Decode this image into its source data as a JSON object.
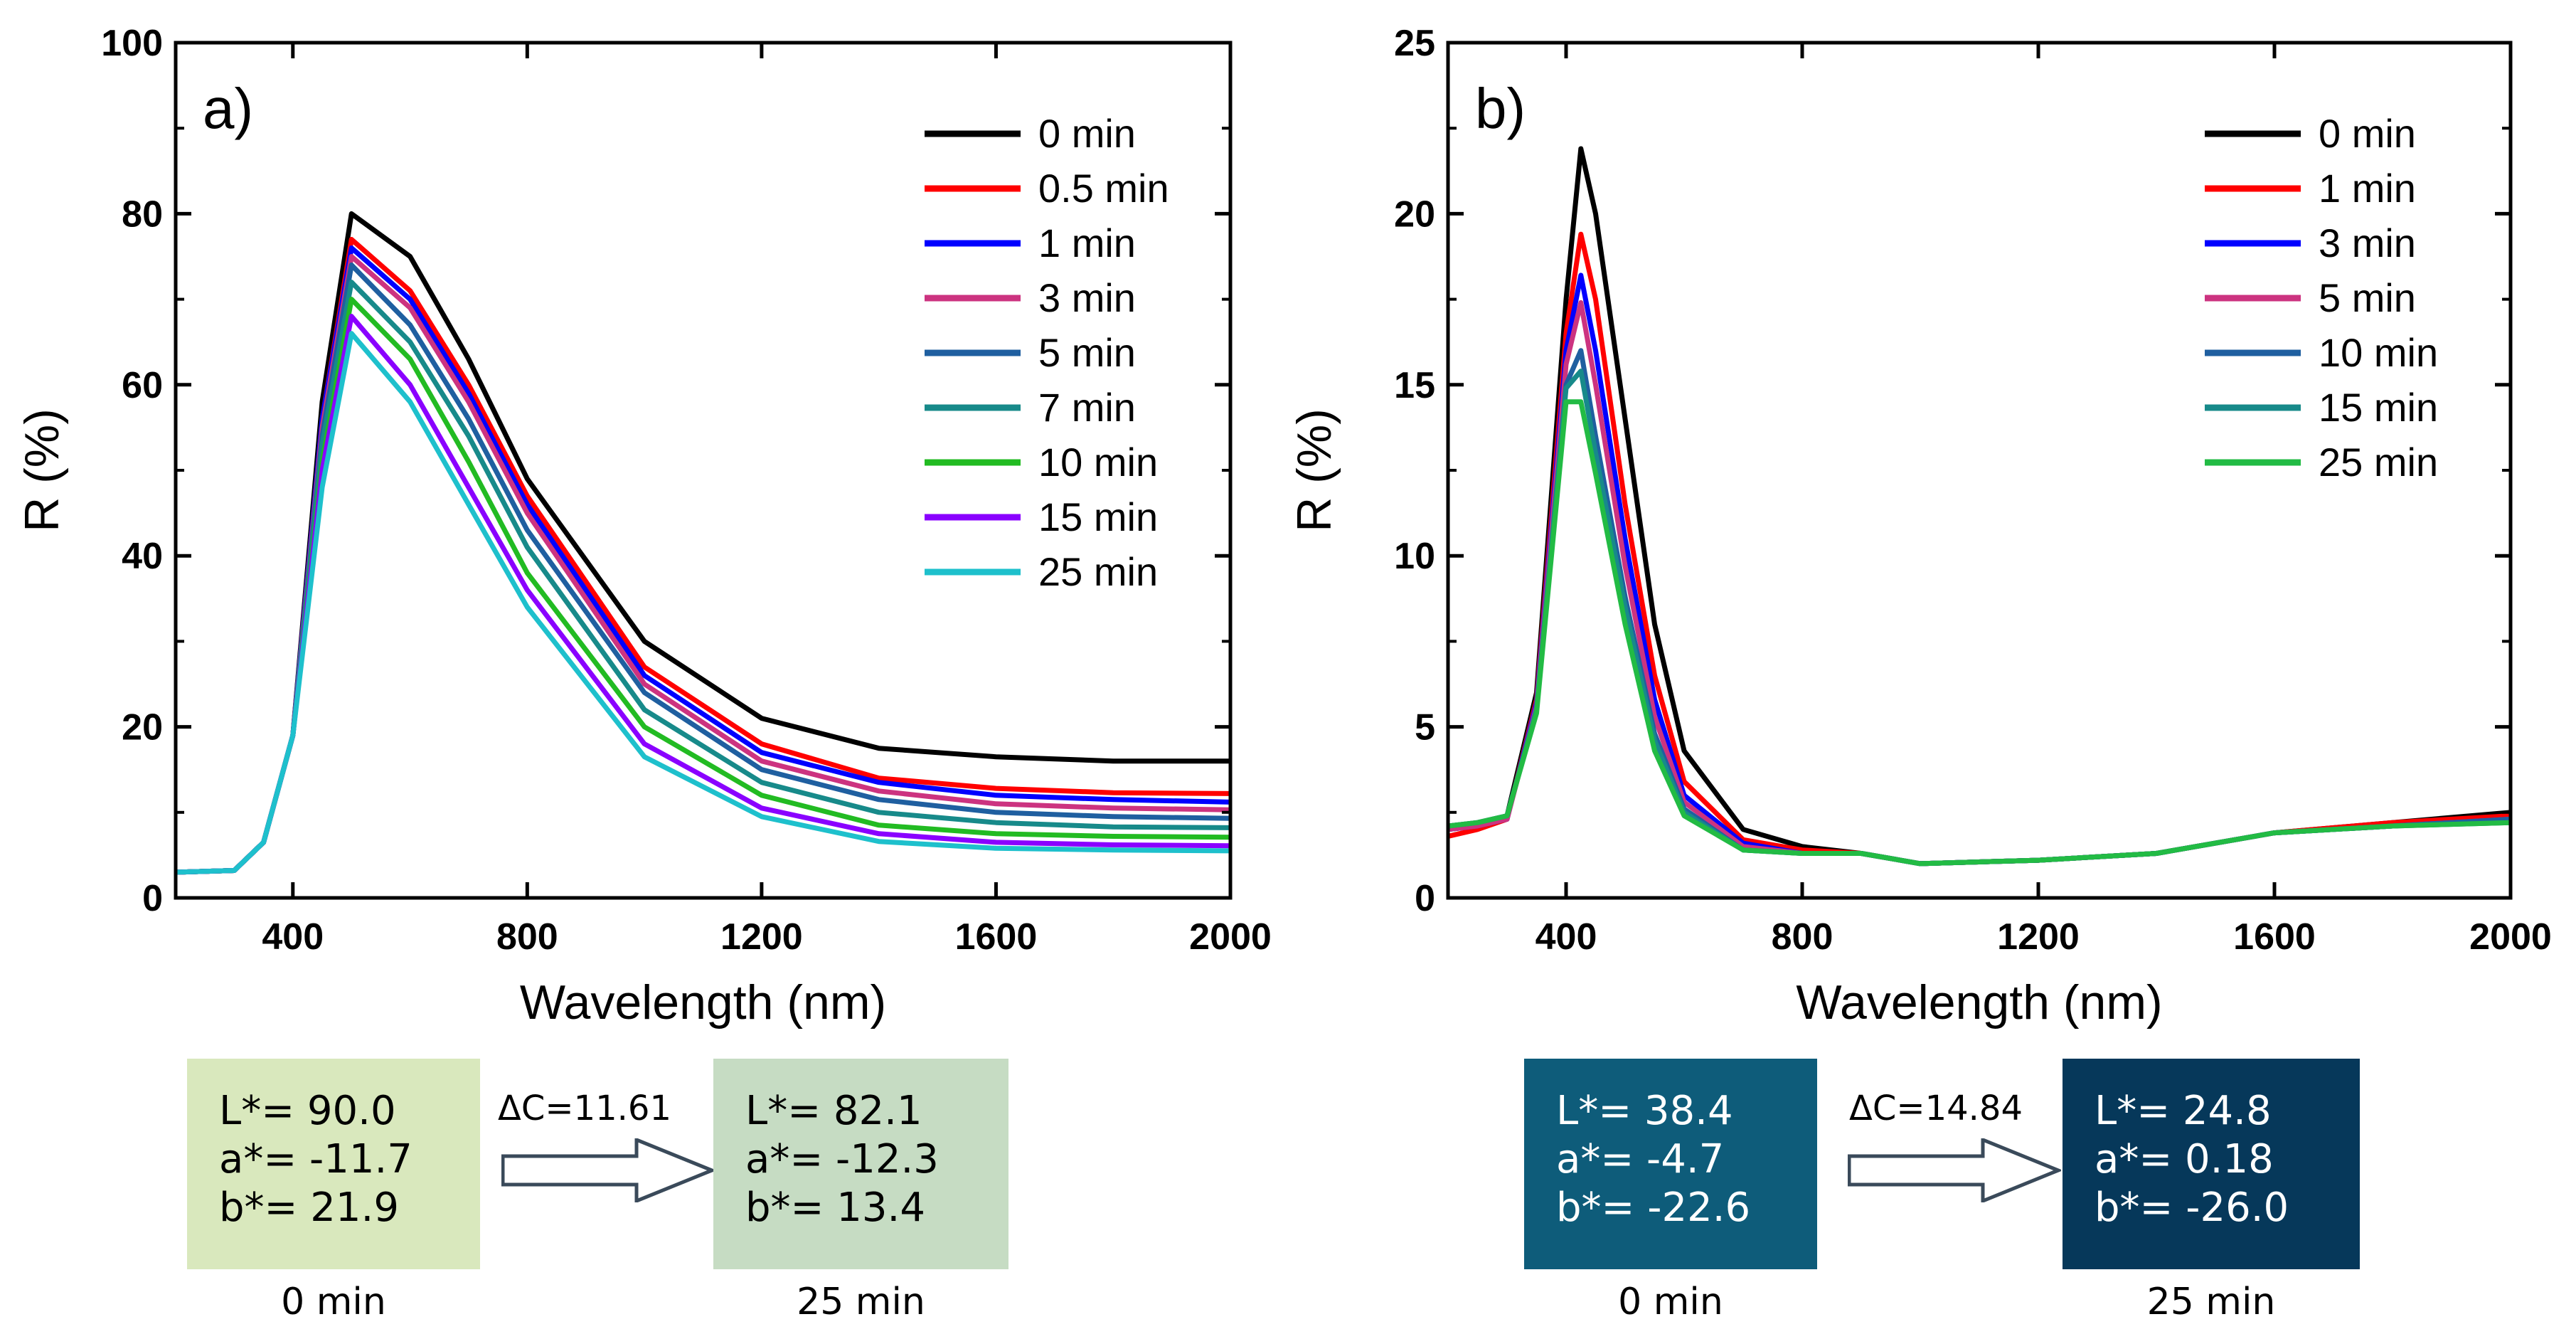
{
  "charts": [
    {
      "panel_label": "a)",
      "ylabel": "R (%)",
      "xlabel": "Wavelength (nm)",
      "legend": [
        {
          "name": "0 min",
          "color": "#000000"
        },
        {
          "name": "0.5 min",
          "color": "#ff0000"
        },
        {
          "name": "1 min",
          "color": "#0000ff"
        },
        {
          "name": "3 min",
          "color": "#cc3380"
        },
        {
          "name": "5 min",
          "color": "#1f5fa0"
        },
        {
          "name": "7 min",
          "color": "#178a8a"
        },
        {
          "name": "10 min",
          "color": "#22bb22"
        },
        {
          "name": "15 min",
          "color": "#8a00ff"
        },
        {
          "name": "25 min",
          "color": "#1ec0cc"
        }
      ],
      "xticks": [
        "400",
        "800",
        "1200",
        "1600",
        "2000"
      ],
      "yticks": [
        "0",
        "20",
        "40",
        "60",
        "80",
        "100"
      ]
    },
    {
      "panel_label": "b)",
      "ylabel": "R (%)",
      "xlabel": "Wavelength (nm)",
      "legend": [
        {
          "name": "0 min",
          "color": "#000000"
        },
        {
          "name": "1 min",
          "color": "#ff0000"
        },
        {
          "name": "3 min",
          "color": "#0000ff"
        },
        {
          "name": "5 min",
          "color": "#cc3380"
        },
        {
          "name": "10 min",
          "color": "#1f5fa0"
        },
        {
          "name": "15 min",
          "color": "#178a8a"
        },
        {
          "name": "25 min",
          "color": "#22bb44"
        }
      ],
      "xticks": [
        "400",
        "800",
        "1200",
        "1600",
        "2000"
      ],
      "yticks": [
        "0",
        "5",
        "10",
        "15",
        "20",
        "25"
      ]
    }
  ],
  "chart_data": [
    {
      "type": "line",
      "panel": "a)",
      "xlabel": "Wavelength (nm)",
      "ylabel": "R (%)",
      "xlim": [
        200,
        2000
      ],
      "ylim": [
        0,
        100
      ],
      "x": [
        200,
        300,
        350,
        400,
        450,
        500,
        600,
        700,
        800,
        1000,
        1200,
        1400,
        1600,
        1800,
        2000
      ],
      "series": [
        {
          "name": "0 min",
          "values": [
            3,
            3.2,
            6.5,
            19,
            58,
            80,
            75,
            63,
            49,
            30,
            21,
            17.5,
            16.5,
            16,
            16
          ]
        },
        {
          "name": "0.5 min",
          "values": [
            3,
            3.2,
            6.5,
            19,
            56,
            77,
            71,
            60,
            47,
            27,
            18,
            14,
            12.8,
            12.3,
            12.2
          ]
        },
        {
          "name": "1 min",
          "values": [
            3,
            3.2,
            6.5,
            19,
            56,
            76,
            70,
            59,
            46,
            26,
            17,
            13.5,
            12,
            11.5,
            11.2
          ]
        },
        {
          "name": "3 min",
          "values": [
            3,
            3.2,
            6.5,
            19,
            55,
            75,
            69,
            58,
            45,
            25,
            16,
            12.5,
            11,
            10.5,
            10.3
          ]
        },
        {
          "name": "5 min",
          "values": [
            3,
            3.2,
            6.5,
            19,
            54,
            74,
            67,
            56,
            43,
            24,
            15,
            11.5,
            10,
            9.5,
            9.3
          ]
        },
        {
          "name": "7 min",
          "values": [
            3,
            3.2,
            6.5,
            19,
            53,
            72,
            65,
            54,
            41,
            22,
            13.5,
            10,
            8.8,
            8.3,
            8.2
          ]
        },
        {
          "name": "10 min",
          "values": [
            3,
            3.2,
            6.5,
            19,
            51,
            70,
            63,
            51,
            38,
            20,
            12,
            8.5,
            7.5,
            7.2,
            7.1
          ]
        },
        {
          "name": "15 min",
          "values": [
            3,
            3.2,
            6.5,
            19,
            50,
            68,
            60,
            48,
            36,
            18,
            10.5,
            7.5,
            6.5,
            6.2,
            6.1
          ]
        },
        {
          "name": "25 min",
          "values": [
            3,
            3.2,
            6.5,
            19,
            48,
            66,
            58,
            46,
            34,
            16.5,
            9.5,
            6.6,
            5.8,
            5.6,
            5.5
          ]
        }
      ]
    },
    {
      "type": "line",
      "panel": "b)",
      "xlabel": "Wavelength (nm)",
      "ylabel": "R (%)",
      "xlim": [
        200,
        2000
      ],
      "ylim": [
        0,
        25
      ],
      "x": [
        200,
        250,
        300,
        350,
        400,
        425,
        450,
        500,
        550,
        600,
        700,
        800,
        900,
        1000,
        1200,
        1400,
        1600,
        1800,
        2000
      ],
      "series": [
        {
          "name": "0 min",
          "values": [
            2.0,
            2.1,
            2.4,
            6.0,
            17.5,
            21.9,
            20.0,
            14.0,
            8.0,
            4.3,
            2.0,
            1.5,
            1.3,
            1.0,
            1.1,
            1.3,
            1.9,
            2.2,
            2.5
          ]
        },
        {
          "name": "1 min",
          "values": [
            1.8,
            2.0,
            2.3,
            5.8,
            16.5,
            19.4,
            17.5,
            11.5,
            6.5,
            3.4,
            1.7,
            1.4,
            1.3,
            1.0,
            1.1,
            1.3,
            1.9,
            2.2,
            2.4
          ]
        },
        {
          "name": "3 min",
          "values": [
            2.0,
            2.1,
            2.3,
            5.7,
            16.0,
            18.2,
            16.0,
            10.5,
            5.8,
            3.0,
            1.6,
            1.3,
            1.3,
            1.0,
            1.1,
            1.3,
            1.9,
            2.1,
            2.3
          ]
        },
        {
          "name": "5 min",
          "values": [
            2.0,
            2.1,
            2.3,
            5.6,
            15.6,
            17.4,
            15.0,
            9.7,
            5.3,
            2.8,
            1.5,
            1.3,
            1.3,
            1.0,
            1.1,
            1.3,
            1.9,
            2.1,
            2.3
          ]
        },
        {
          "name": "10 min",
          "values": [
            2.1,
            2.2,
            2.4,
            5.5,
            15.0,
            16.0,
            13.5,
            8.8,
            4.8,
            2.6,
            1.4,
            1.3,
            1.3,
            1.0,
            1.1,
            1.3,
            1.9,
            2.1,
            2.3
          ]
        },
        {
          "name": "15 min",
          "values": [
            2.1,
            2.2,
            2.4,
            5.5,
            14.9,
            15.4,
            13.0,
            8.5,
            4.6,
            2.5,
            1.4,
            1.3,
            1.3,
            1.0,
            1.1,
            1.3,
            1.9,
            2.1,
            2.2
          ]
        },
        {
          "name": "25 min",
          "values": [
            2.1,
            2.2,
            2.4,
            5.4,
            14.5,
            14.5,
            12.4,
            8.0,
            4.3,
            2.4,
            1.4,
            1.3,
            1.3,
            1.0,
            1.1,
            1.3,
            1.9,
            2.1,
            2.2
          ]
        }
      ]
    }
  ],
  "color_panels": [
    {
      "left": {
        "lines": [
          "L*= 90.0",
          "a*= -11.7",
          "b*= 21.9"
        ],
        "caption": "0 min",
        "bg": "#d9e8bd",
        "fg": "#000000"
      },
      "delta": "ΔC=11.61",
      "right": {
        "lines": [
          "L*= 82.1",
          "a*= -12.3",
          "b*= 13.4"
        ],
        "caption": "25 min",
        "bg": "#c6dcc3",
        "fg": "#000000"
      }
    },
    {
      "left": {
        "lines": [
          "L*= 38.4",
          "a*= -4.7",
          "b*= -22.6"
        ],
        "caption": "0 min",
        "bg": "#0e5c7a",
        "fg": "#ffffff"
      },
      "delta": "ΔC=14.84",
      "right": {
        "lines": [
          "L*= 24.8",
          "a*= 0.18",
          "b*= -26.0"
        ],
        "caption": "25 min",
        "bg": "#06385a",
        "fg": "#ffffff"
      }
    }
  ]
}
